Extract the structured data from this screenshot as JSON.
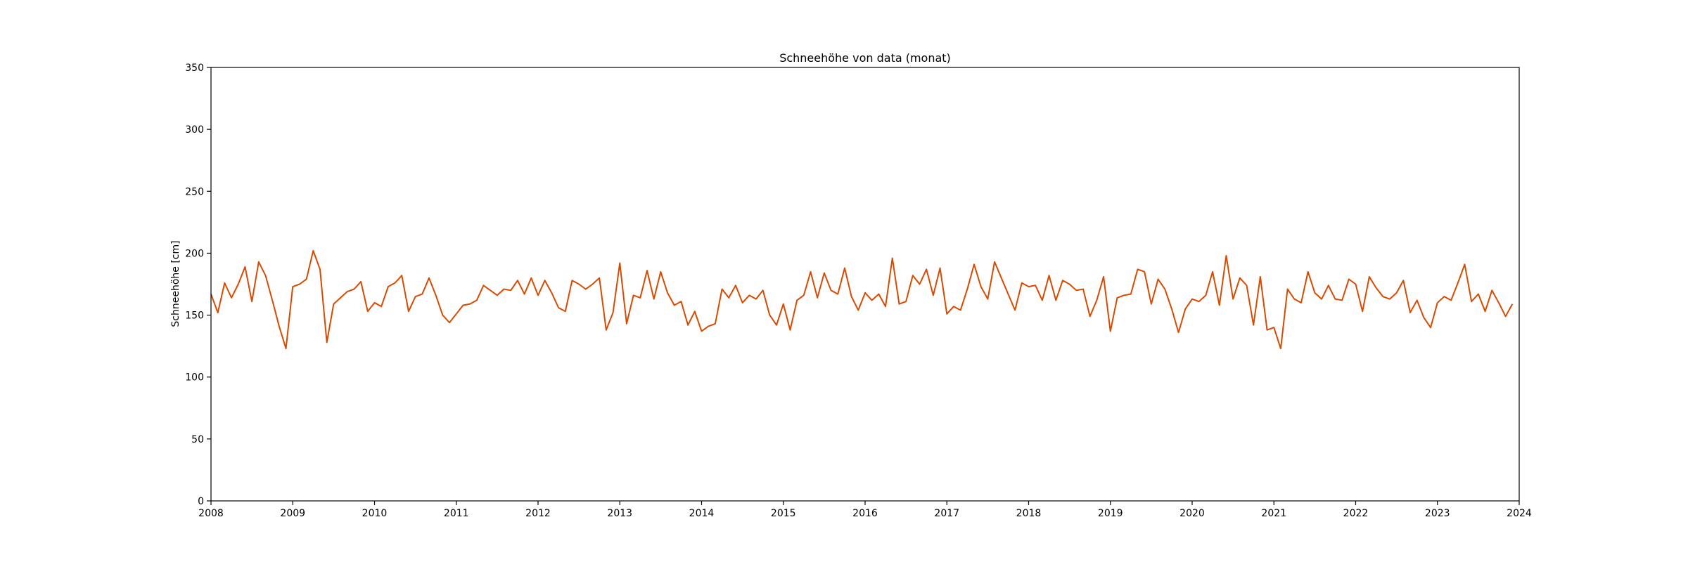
{
  "chart_data": {
    "type": "line",
    "title": "Schneehöhe von data (monat)",
    "xlabel": "",
    "ylabel": "Schneehöhe [cm]",
    "xlim": [
      2008,
      2024
    ],
    "ylim": [
      0,
      350
    ],
    "x_ticks": [
      "2008",
      "2009",
      "2010",
      "2011",
      "2012",
      "2013",
      "2014",
      "2015",
      "2016",
      "2017",
      "2018",
      "2019",
      "2020",
      "2021",
      "2022",
      "2023",
      "2024"
    ],
    "y_ticks": [
      "0",
      "50",
      "100",
      "150",
      "200",
      "250",
      "300",
      "350"
    ],
    "grid": false,
    "legend": "none",
    "line_color": "#d94a00",
    "series": [
      {
        "x_start": "2008-01",
        "x_step": "monthly",
        "values": [
          167,
          152,
          176,
          164,
          175,
          189,
          161,
          193,
          182,
          162,
          141,
          123,
          173,
          175,
          179,
          202,
          187,
          128,
          159,
          164,
          169,
          171,
          177,
          153,
          160,
          157,
          173,
          176,
          182,
          153,
          165,
          167,
          180,
          166,
          150,
          144,
          151,
          158,
          159,
          162,
          174,
          170,
          166,
          171,
          170,
          178,
          167,
          180,
          166,
          178,
          168,
          156,
          153,
          178,
          175,
          171,
          175,
          180,
          138,
          152,
          192,
          143,
          166,
          164,
          186,
          163,
          185,
          168,
          158,
          161,
          142,
          153,
          137,
          141,
          143,
          171,
          164,
          174,
          160,
          166,
          163,
          170,
          150,
          142,
          159,
          138,
          162,
          166,
          185,
          164,
          184,
          170,
          167,
          188,
          165,
          154,
          168,
          162,
          167,
          157,
          196,
          159,
          161,
          182,
          175,
          187,
          166,
          188,
          151,
          157,
          154,
          171,
          191,
          173,
          163,
          193,
          180,
          167,
          154,
          176,
          173,
          174,
          162,
          182,
          162,
          178,
          175,
          170,
          171,
          149,
          162,
          181,
          137,
          164,
          166,
          167,
          187,
          185,
          159,
          179,
          171,
          155,
          136,
          155,
          163,
          161,
          166,
          185,
          158,
          198,
          163,
          180,
          174,
          142,
          181,
          138,
          140,
          123,
          171,
          163,
          160,
          185,
          168,
          163,
          174,
          163,
          162,
          179,
          175,
          153,
          181,
          172,
          165,
          163,
          168,
          178,
          152,
          162,
          148,
          140,
          160,
          165,
          162,
          176,
          191,
          161,
          167,
          153,
          170,
          160,
          149,
          159
        ]
      }
    ]
  }
}
